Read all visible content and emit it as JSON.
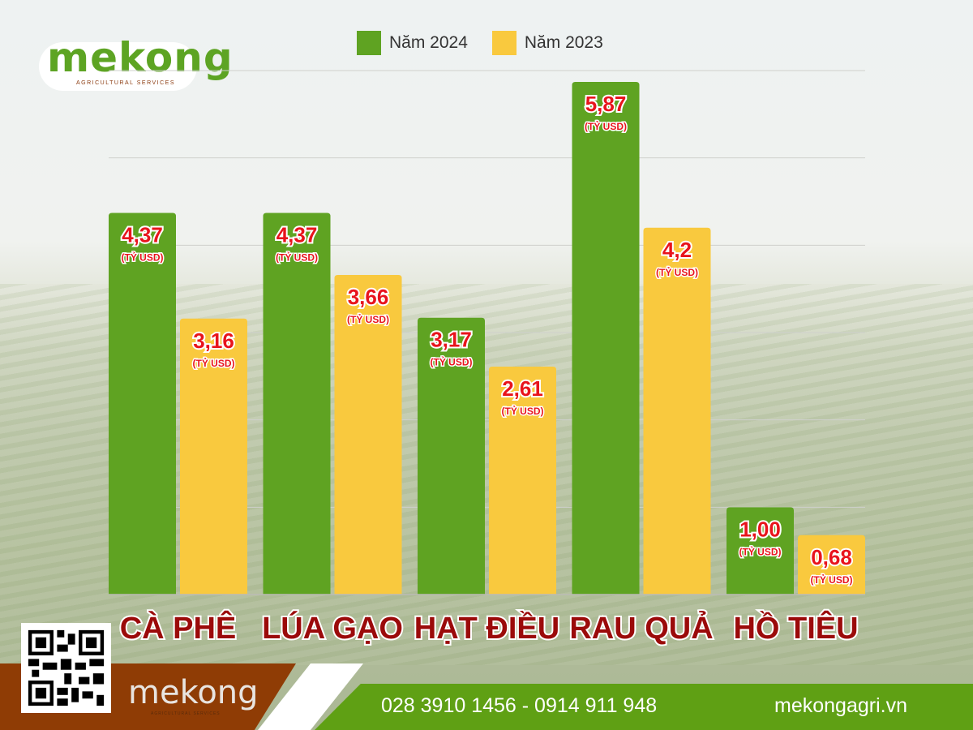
{
  "brand": {
    "logo_text": "mekong",
    "logo_subtitle": "AGRICULTURAL SERVICES"
  },
  "footer": {
    "phone": "028 3910 1456 - 0914 911 948",
    "website": "mekongagri.vn",
    "logo_text": "mekong",
    "logo_subtitle": "AGRICULTURAL SERVICES"
  },
  "chart_data": {
    "type": "bar",
    "categories": [
      "CÀ PHÊ",
      "LÚA GẠO",
      "HẠT ĐIỀU",
      "RAU QUẢ",
      "HỒ TIÊU"
    ],
    "series": [
      {
        "name": "Năm 2024",
        "color": "#5fa322",
        "values": [
          4.37,
          4.37,
          3.17,
          5.87,
          1.0
        ],
        "labels": [
          "4,37",
          "4,37",
          "3,17",
          "5,87",
          "1,00"
        ]
      },
      {
        "name": "Năm 2023",
        "color": "#f9c93e",
        "values": [
          3.16,
          3.66,
          2.61,
          4.2,
          0.68
        ],
        "labels": [
          "3,16",
          "3,66",
          "2,61",
          "4,2",
          "0,68"
        ]
      }
    ],
    "unit_label": "(TỶ USD)",
    "ylim": [
      0,
      6
    ],
    "grid": true,
    "legend": "top-center"
  }
}
